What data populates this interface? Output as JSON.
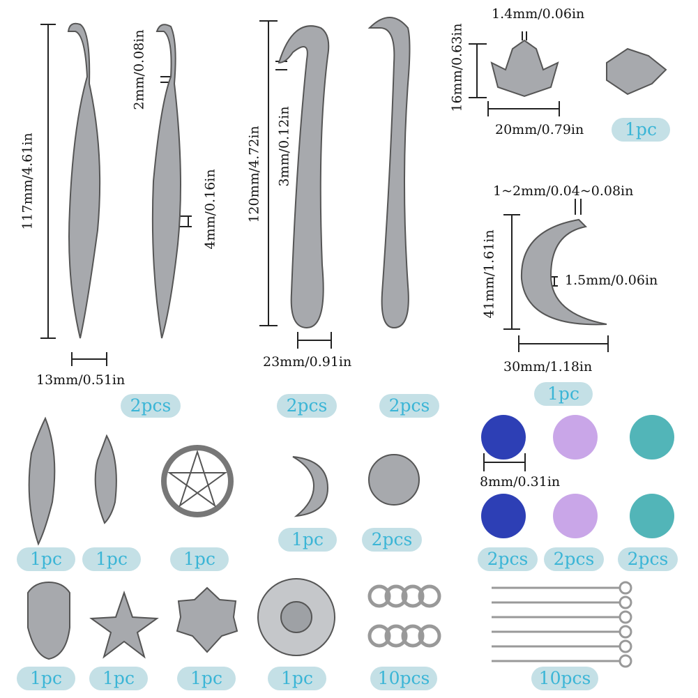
{
  "colors": {
    "badge_bg": "#c4e0e6",
    "badge_text": "#3bb5d6",
    "metal": "#8d8f93",
    "blue_bead": "#2d3fb5",
    "purple_bead": "#c9a6e8",
    "turquoise_bead": "#52b5b8"
  },
  "dimensions": {
    "feather_bookmark_length": "117mm/4.61in",
    "feather_hook_wire": "2mm/0.08in",
    "feather_thickness": "4mm/0.16in",
    "feather_width": "13mm/0.51in",
    "sun_bookmark_length": "120mm/4.72in",
    "sun_bookmark_hole": "3mm/0.12in",
    "sun_bookmark_width": "23mm/0.91in",
    "lotus_hole": "1.4mm/0.06in",
    "lotus_height": "16mm/0.63in",
    "lotus_width": "20mm/0.79in",
    "moon_hole": "1~2mm/0.04~0.08in",
    "moon_height": "41mm/1.61in",
    "moon_thickness": "1.5mm/0.06in",
    "moon_width": "30mm/1.18in",
    "bead_diameter": "8mm/0.31in"
  },
  "quantities": {
    "feather_bookmarks": "2pcs",
    "sun_bookmark": "2pcs",
    "swirl_bookmark": "2pcs",
    "lotus": "1pc",
    "moon_pendant": "1pc",
    "large_feather": "1pc",
    "small_feather": "1pc",
    "pentagram": "1pc",
    "small_moon": "1pc",
    "swirl_connector": "2pcs",
    "blue_beads": "2pcs",
    "purple_beads": "2pcs",
    "turquoise_beads": "2pcs",
    "hamsa": "1pc",
    "star": "1pc",
    "chakra": "1pc",
    "sun_charm": "1pc",
    "jump_rings": "10pcs",
    "eye_pins": "10pcs"
  }
}
